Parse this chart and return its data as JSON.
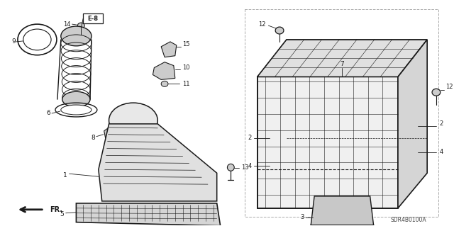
{
  "bg": "#ffffff",
  "dark": "#1a1a1a",
  "gray": "#888888",
  "lgray": "#cccccc",
  "diagram_code": "SDR4B0100A",
  "figsize": [
    6.4,
    3.19
  ],
  "dpi": 100
}
